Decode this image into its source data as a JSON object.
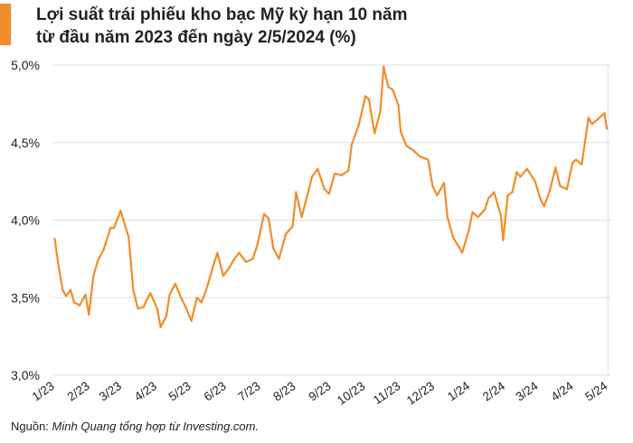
{
  "title": {
    "line1": "Lợi suất trái phiếu kho bạc Mỹ kỳ hạn 10 năm",
    "line2": "từ đầu năm 2023 đến ngày 2/5/2024 (%)"
  },
  "source": {
    "prefix": "Nguồn: ",
    "text": "Minh Quang tổng hợp từ Investing.com."
  },
  "colors": {
    "accent": "#f28c28",
    "line": "#f28c28",
    "grid": "#dddddd",
    "text": "#222222"
  },
  "chart_data": {
    "type": "line",
    "title": "Lợi suất trái phiếu kho bạc Mỹ kỳ hạn 10 năm từ đầu năm 2023 đến ngày 2/5/2024 (%)",
    "xlabel": "",
    "ylabel": "",
    "ylim": [
      3.0,
      5.0
    ],
    "yticks": [
      "3,0%",
      "3,5%",
      "4,0%",
      "4,5%",
      "5,0%"
    ],
    "ytick_values": [
      3.0,
      3.5,
      4.0,
      4.5,
      5.0
    ],
    "xticks": [
      "1/23",
      "2/23",
      "3/23",
      "4/23",
      "5/23",
      "6/23",
      "7/23",
      "8/23",
      "9/23",
      "10/23",
      "11/23",
      "12/23",
      "1/24",
      "2/24",
      "3/24",
      "4/24",
      "5/24"
    ],
    "grid": "horizontal",
    "series": [
      {
        "x": [
          "2023-01-03",
          "2023-01-06",
          "2023-01-10",
          "2023-01-13",
          "2023-01-17",
          "2023-01-20",
          "2023-01-25",
          "2023-01-30",
          "2023-02-02",
          "2023-02-06",
          "2023-02-10",
          "2023-02-15",
          "2023-02-21",
          "2023-02-24",
          "2023-03-02",
          "2023-03-06",
          "2023-03-09",
          "2023-03-13",
          "2023-03-17",
          "2023-03-22",
          "2023-03-28",
          "2023-04-03",
          "2023-04-06",
          "2023-04-11",
          "2023-04-14",
          "2023-04-19",
          "2023-04-24",
          "2023-04-28",
          "2023-05-03",
          "2023-05-08",
          "2023-05-12",
          "2023-05-17",
          "2023-05-22",
          "2023-05-26",
          "2023-05-31",
          "2023-06-05",
          "2023-06-09",
          "2023-06-14",
          "2023-06-20",
          "2023-06-26",
          "2023-06-30",
          "2023-07-06",
          "2023-07-10",
          "2023-07-14",
          "2023-07-19",
          "2023-07-25",
          "2023-07-31",
          "2023-08-03",
          "2023-08-08",
          "2023-08-14",
          "2023-08-17",
          "2023-08-22",
          "2023-08-28",
          "2023-09-01",
          "2023-09-06",
          "2023-09-12",
          "2023-09-18",
          "2023-09-21",
          "2023-09-27",
          "2023-10-03",
          "2023-10-06",
          "2023-10-11",
          "2023-10-16",
          "2023-10-19",
          "2023-10-23",
          "2023-10-27",
          "2023-11-01",
          "2023-11-03",
          "2023-11-08",
          "2023-11-14",
          "2023-11-20",
          "2023-11-27",
          "2023-12-01",
          "2023-12-05",
          "2023-12-11",
          "2023-12-14",
          "2023-12-19",
          "2023-12-27",
          "2024-01-02",
          "2024-01-05",
          "2024-01-10",
          "2024-01-16",
          "2024-01-19",
          "2024-01-24",
          "2024-01-30",
          "2024-02-01",
          "2024-02-05",
          "2024-02-09",
          "2024-02-13",
          "2024-02-16",
          "2024-02-22",
          "2024-02-29",
          "2024-03-05",
          "2024-03-08",
          "2024-03-13",
          "2024-03-18",
          "2024-03-22",
          "2024-03-28",
          "2024-04-02",
          "2024-04-05",
          "2024-04-10",
          "2024-04-16",
          "2024-04-19",
          "2024-04-24",
          "2024-04-30",
          "2024-05-02"
        ],
        "values": [
          3.88,
          3.72,
          3.55,
          3.51,
          3.55,
          3.47,
          3.45,
          3.52,
          3.39,
          3.64,
          3.74,
          3.81,
          3.95,
          3.95,
          4.06,
          3.96,
          3.89,
          3.55,
          3.43,
          3.44,
          3.53,
          3.43,
          3.31,
          3.38,
          3.52,
          3.59,
          3.5,
          3.44,
          3.35,
          3.5,
          3.47,
          3.57,
          3.7,
          3.79,
          3.64,
          3.69,
          3.74,
          3.79,
          3.73,
          3.75,
          3.84,
          4.04,
          4.01,
          3.82,
          3.75,
          3.91,
          3.96,
          4.18,
          4.02,
          4.19,
          4.28,
          4.33,
          4.2,
          4.17,
          4.3,
          4.29,
          4.32,
          4.49,
          4.61,
          4.8,
          4.78,
          4.56,
          4.7,
          4.99,
          4.86,
          4.84,
          4.74,
          4.57,
          4.48,
          4.45,
          4.41,
          4.39,
          4.22,
          4.16,
          4.24,
          4.02,
          3.89,
          3.79,
          3.94,
          4.05,
          4.02,
          4.07,
          4.14,
          4.18,
          4.03,
          3.87,
          4.16,
          4.18,
          4.31,
          4.28,
          4.33,
          4.25,
          4.13,
          4.09,
          4.19,
          4.34,
          4.22,
          4.2,
          4.37,
          4.39,
          4.36,
          4.66,
          4.62,
          4.65,
          4.69,
          4.59
        ]
      }
    ]
  }
}
